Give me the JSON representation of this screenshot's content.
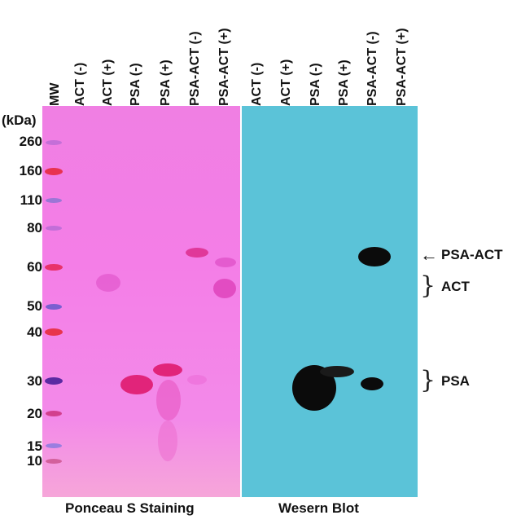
{
  "lanes": {
    "mw": "MW",
    "ponceau": [
      "ACT (-)",
      "ACT (+)",
      "PSA (-)",
      "PSA (+)",
      "PSA-ACT (-)",
      "PSA-ACT (+)"
    ],
    "blot": [
      "ACT (-)",
      "ACT (+)",
      "PSA (-)",
      "PSA (+)",
      "PSA-ACT (-)",
      "PSA-ACT (+)"
    ]
  },
  "unit_label": "(kDa)",
  "mw_markers": [
    "260",
    "160",
    "110",
    "80",
    "60",
    "50",
    "40",
    "30",
    "20",
    "15",
    "10"
  ],
  "panels": {
    "ponceau_title": "Ponceau S Staining",
    "blot_title": "Wesern Blot"
  },
  "annotations": {
    "arrow": "←",
    "psa_act": "PSA-ACT",
    "act": "ACT",
    "psa": "PSA",
    "brace": "}"
  },
  "colors": {
    "ponceau_bg": "#f07fe3",
    "blot_bg": "#5bc3d8",
    "band_dark": "#0b0b0b",
    "band_pink": "#e1247a"
  }
}
